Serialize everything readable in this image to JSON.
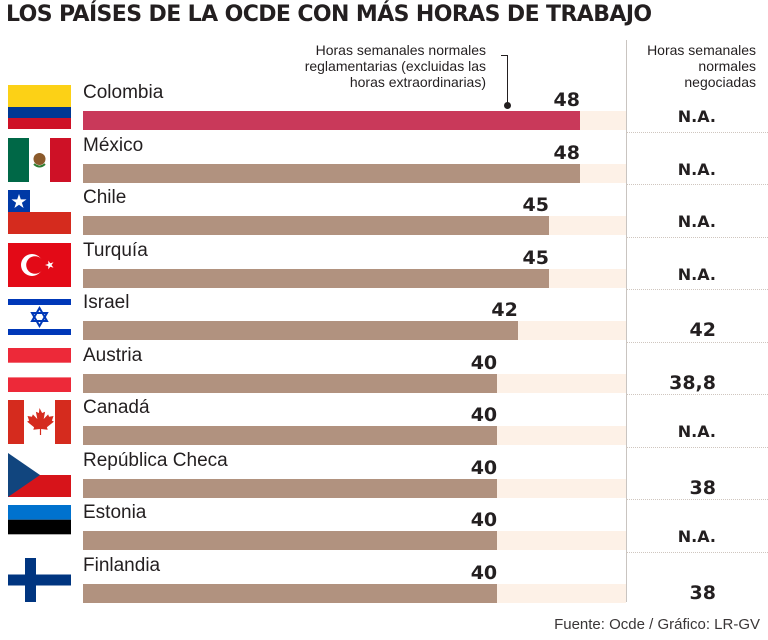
{
  "title": "LOS PAÍSES DE LA OCDE CON MÁS HORAS DE TRABAJO",
  "annotation": {
    "line1": "Horas semanales normales",
    "line2": "reglamentarias (excluidas las",
    "line3": "horas extraordinarias)"
  },
  "col_header": {
    "line1": "Horas semanales",
    "line2": "normales",
    "line3": "negociadas"
  },
  "source": "Fuente: Ocde / Gráfico: LR-GV",
  "colors": {
    "highlight": "#c9395a",
    "bar": "#b1927f",
    "bar_bg": "#fdf1e7"
  },
  "chart_data": {
    "type": "bar",
    "orientation": "horizontal",
    "title": "LOS PAÍSES DE LA OCDE CON MÁS HORAS DE TRABAJO",
    "xlim": [
      0,
      52
    ],
    "categories": [
      "Colombia",
      "México",
      "Chile",
      "Turquía",
      "Israel",
      "Austria",
      "Canadá",
      "República Checa",
      "Estonia",
      "Finlandia"
    ],
    "series": [
      {
        "name": "Horas semanales normales reglamentarias (excluidas las horas extraordinarias)",
        "values": [
          48,
          48,
          45,
          45,
          42,
          40,
          40,
          40,
          40,
          40
        ],
        "labels": [
          "48",
          "48",
          "45",
          "45",
          "42",
          "40",
          "40",
          "40",
          "40",
          "40"
        ]
      },
      {
        "name": "Horas semanales normales negociadas",
        "values": [
          null,
          null,
          null,
          null,
          42,
          38.8,
          null,
          38,
          null,
          38
        ],
        "labels": [
          "N.A.",
          "N.A.",
          "N.A.",
          "N.A.",
          "42",
          "38,8",
          "N.A.",
          "38",
          "N.A.",
          "38"
        ]
      }
    ],
    "flags": [
      "colombia-flag-icon",
      "mexico-flag-icon",
      "chile-flag-icon",
      "turkey-flag-icon",
      "israel-flag-icon",
      "austria-flag-icon",
      "canada-flag-icon",
      "czech-flag-icon",
      "estonia-flag-icon",
      "finland-flag-icon"
    ]
  }
}
